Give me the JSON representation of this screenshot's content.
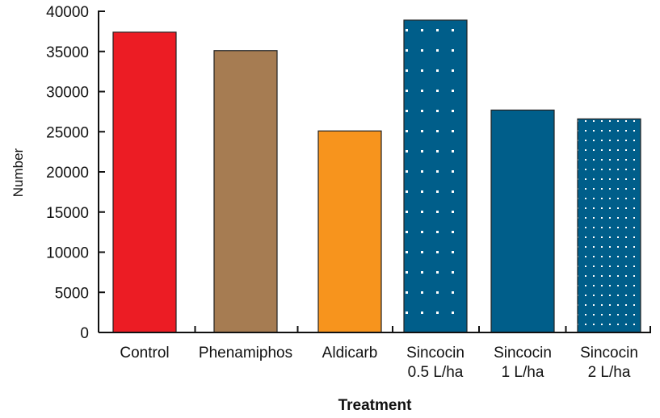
{
  "chart_data": {
    "type": "bar",
    "title": "",
    "xlabel": "Treatment",
    "ylabel": "Number",
    "ylim": [
      0,
      40000
    ],
    "yticks": [
      0,
      5000,
      10000,
      15000,
      20000,
      25000,
      30000,
      35000,
      40000
    ],
    "grid": false,
    "legend": "none",
    "categories": [
      [
        "Control"
      ],
      [
        "Phenamiphos"
      ],
      [
        "Aldicarb"
      ],
      [
        "Sincocin",
        "0.5 L/ha"
      ],
      [
        "Sincocin",
        "1 L/ha"
      ],
      [
        "Sincocin",
        "2 L/ha"
      ]
    ],
    "values": [
      37400,
      35100,
      25100,
      38900,
      27700,
      26600
    ],
    "bar_colors": [
      "#ec1c24",
      "#a67c52",
      "#f7941d",
      "#005e8a",
      "#005e8a",
      "#005e8a"
    ],
    "bar_patterns": [
      "solid",
      "solid",
      "solid",
      "dots-sparse",
      "solid",
      "dots-dense"
    ]
  }
}
